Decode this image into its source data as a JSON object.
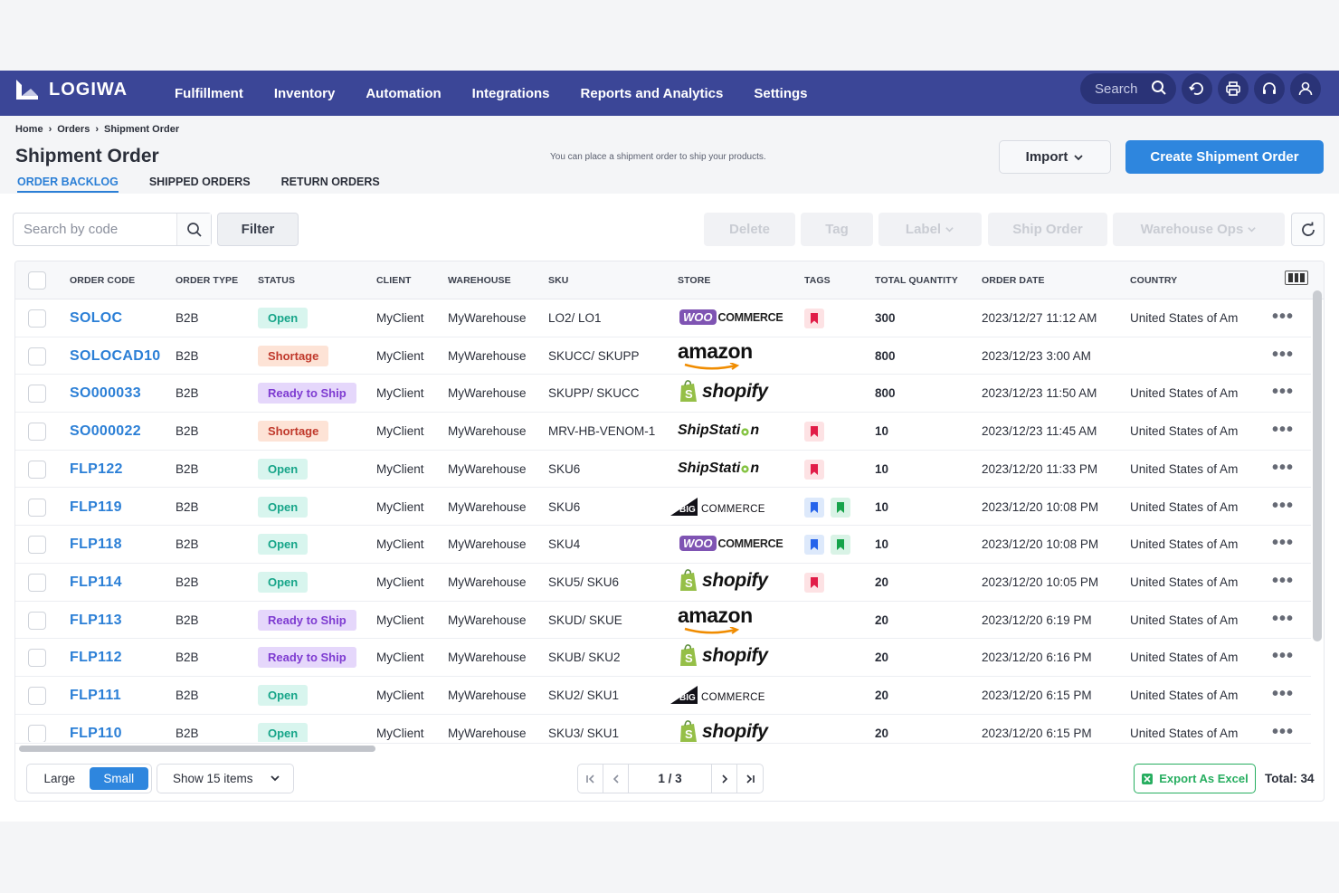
{
  "app": {
    "logo_text": "LOGIWA"
  },
  "nav": {
    "items": [
      "Fulfillment",
      "Inventory",
      "Automation",
      "Integrations",
      "Reports and Analytics",
      "Settings"
    ],
    "search_label": "Search"
  },
  "breadcrumb": [
    "Home",
    "Orders",
    "Shipment Order"
  ],
  "page": {
    "title": "Shipment Order",
    "subtitle": "You can place a shipment order to ship your products.",
    "import_label": "Import",
    "create_label": "Create Shipment Order"
  },
  "tabs": [
    "ORDER BACKLOG",
    "SHIPPED ORDERS",
    "RETURN ORDERS"
  ],
  "toolbar": {
    "search_placeholder": "Search by code",
    "filter_label": "Filter",
    "delete_label": "Delete",
    "tag_label": "Tag",
    "label_label": "Label",
    "ship_order_label": "Ship Order",
    "warehouse_ops_label": "Warehouse Ops"
  },
  "table": {
    "columns": [
      "ORDER CODE",
      "ORDER TYPE",
      "STATUS",
      "CLIENT",
      "WAREHOUSE",
      "SKU",
      "STORE",
      "TAGS",
      "TOTAL QUANTITY",
      "ORDER DATE",
      "COUNTRY"
    ],
    "rows": [
      {
        "code": "SOLOC",
        "type": "B2B",
        "status": "Open",
        "client": "MyClient",
        "warehouse": "MyWarehouse",
        "sku": "LO2/ LO1",
        "store": "woocommerce",
        "tags": [
          "red"
        ],
        "qty": "300",
        "date": "2023/12/27 11:12 AM",
        "country": "United States of Am"
      },
      {
        "code": "SOLOCAD10",
        "type": "B2B",
        "status": "Shortage",
        "client": "MyClient",
        "warehouse": "MyWarehouse",
        "sku": "SKUCC/ SKUPP",
        "store": "amazon",
        "tags": [],
        "qty": "800",
        "date": "2023/12/23 3:00 AM",
        "country": ""
      },
      {
        "code": "SO000033",
        "type": "B2B",
        "status": "Ready to Ship",
        "client": "MyClient",
        "warehouse": "MyWarehouse",
        "sku": "SKUPP/ SKUCC",
        "store": "shopify",
        "tags": [],
        "qty": "800",
        "date": "2023/12/23 11:50 AM",
        "country": "United States of Am"
      },
      {
        "code": "SO000022",
        "type": "B2B",
        "status": "Shortage",
        "client": "MyClient",
        "warehouse": "MyWarehouse",
        "sku": "MRV-HB-VENOM-1",
        "store": "shipstation",
        "tags": [
          "red"
        ],
        "qty": "10",
        "date": "2023/12/23 11:45 AM",
        "country": "United States of Am"
      },
      {
        "code": "FLP122",
        "type": "B2B",
        "status": "Open",
        "client": "MyClient",
        "warehouse": "MyWarehouse",
        "sku": "SKU6",
        "store": "shipstation",
        "tags": [
          "red"
        ],
        "qty": "10",
        "date": "2023/12/20 11:33 PM",
        "country": "United States of Am"
      },
      {
        "code": "FLP119",
        "type": "B2B",
        "status": "Open",
        "client": "MyClient",
        "warehouse": "MyWarehouse",
        "sku": "SKU6",
        "store": "bigcommerce",
        "tags": [
          "blue",
          "green"
        ],
        "qty": "10",
        "date": "2023/12/20 10:08 PM",
        "country": "United States of Am"
      },
      {
        "code": "FLP118",
        "type": "B2B",
        "status": "Open",
        "client": "MyClient",
        "warehouse": "MyWarehouse",
        "sku": "SKU4",
        "store": "woocommerce",
        "tags": [
          "blue",
          "green"
        ],
        "qty": "10",
        "date": "2023/12/20 10:08 PM",
        "country": "United States of Am"
      },
      {
        "code": "FLP114",
        "type": "B2B",
        "status": "Open",
        "client": "MyClient",
        "warehouse": "MyWarehouse",
        "sku": "SKU5/ SKU6",
        "store": "shopify",
        "tags": [
          "red"
        ],
        "qty": "20",
        "date": "2023/12/20 10:05 PM",
        "country": "United States of Am"
      },
      {
        "code": "FLP113",
        "type": "B2B",
        "status": "Ready to Ship",
        "client": "MyClient",
        "warehouse": "MyWarehouse",
        "sku": "SKUD/ SKUE",
        "store": "amazon",
        "tags": [],
        "qty": "20",
        "date": "2023/12/20 6:19 PM",
        "country": "United States of Am"
      },
      {
        "code": "FLP112",
        "type": "B2B",
        "status": "Ready to Ship",
        "client": "MyClient",
        "warehouse": "MyWarehouse",
        "sku": "SKUB/ SKU2",
        "store": "shopify",
        "tags": [],
        "qty": "20",
        "date": "2023/12/20 6:16 PM",
        "country": "United States of Am"
      },
      {
        "code": "FLP111",
        "type": "B2B",
        "status": "Open",
        "client": "MyClient",
        "warehouse": "MyWarehouse",
        "sku": "SKU2/ SKU1",
        "store": "bigcommerce",
        "tags": [],
        "qty": "20",
        "date": "2023/12/20 6:15 PM",
        "country": "United States of Am"
      },
      {
        "code": "FLP110",
        "type": "B2B",
        "status": "Open",
        "client": "MyClient",
        "warehouse": "MyWarehouse",
        "sku": "SKU3/ SKU1",
        "store": "shopify",
        "tags": [],
        "qty": "20",
        "date": "2023/12/20 6:15 PM",
        "country": "United States of Am"
      }
    ]
  },
  "store_logos": {
    "woocommerce": {
      "badge": "WOO",
      "text": "COMMERCE"
    },
    "amazon": {
      "text": "amazon"
    },
    "shopify": {
      "text": "shopify"
    },
    "shipstation": {
      "text": "ShipStati",
      "tail": "n"
    },
    "bigcommerce": {
      "badge": "BIG",
      "text": "COMMERCE"
    }
  },
  "footer": {
    "size_large": "Large",
    "size_small": "Small",
    "show_items": "Show 15 items",
    "page_indicator": "1 / 3",
    "export_label": "Export As Excel",
    "total_label": "Total: 34"
  },
  "colors": {
    "navbar": "#3b4697",
    "accent": "#2e86de",
    "link": "#2b7fd6",
    "open": "#17a589",
    "shortage": "#c0392b",
    "ready": "#7e3bd1",
    "excel": "#27ae60"
  }
}
